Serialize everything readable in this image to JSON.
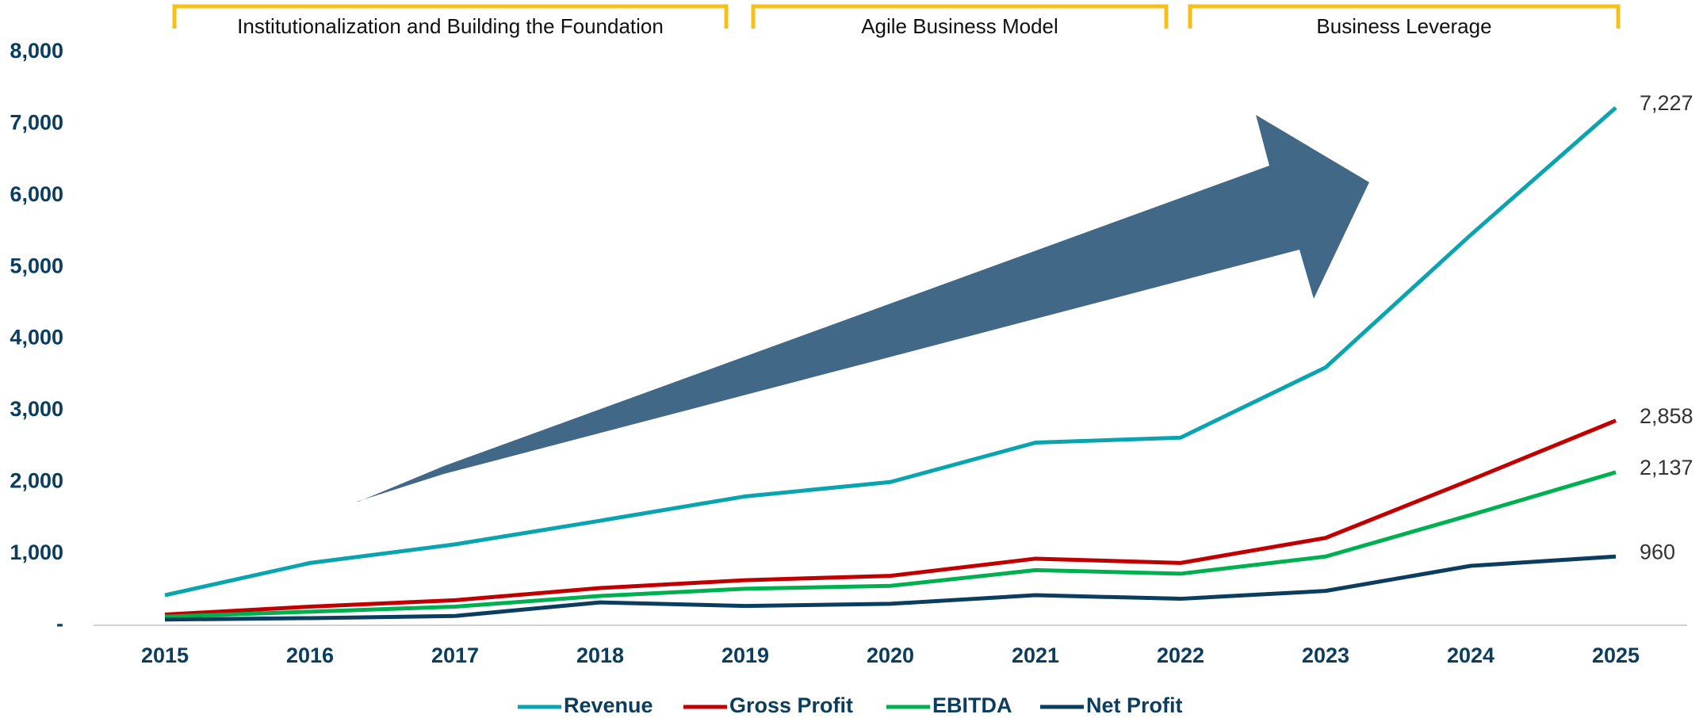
{
  "chart_data": {
    "type": "line",
    "categories": [
      "2015",
      "2016",
      "2017",
      "2018",
      "2019",
      "2020",
      "2021",
      "2022",
      "2023",
      "2024",
      "2025"
    ],
    "series": [
      {
        "name": "Revenue",
        "color": "#0aa3b0",
        "values": [
          420,
          870,
          1130,
          1460,
          1800,
          2000,
          2550,
          2620,
          3600,
          5450,
          7227
        ],
        "value_labels": [
          null,
          null,
          null,
          null,
          null,
          null,
          null,
          null,
          null,
          null,
          "7,227"
        ]
      },
      {
        "name": "Gross Profit",
        "color": "#c00000",
        "values": [
          150,
          260,
          350,
          520,
          630,
          690,
          930,
          870,
          1220,
          2030,
          2858
        ],
        "value_labels": [
          null,
          null,
          null,
          null,
          null,
          null,
          null,
          null,
          null,
          null,
          "2,858"
        ]
      },
      {
        "name": "EBITDA",
        "color": "#00b050",
        "values": [
          120,
          190,
          260,
          410,
          510,
          550,
          770,
          720,
          960,
          1540,
          2137
        ],
        "value_labels": [
          null,
          null,
          null,
          null,
          null,
          null,
          null,
          null,
          null,
          null,
          "2,137"
        ]
      },
      {
        "name": "Net Profit",
        "color": "#0b3d5e",
        "values": [
          80,
          100,
          130,
          320,
          270,
          300,
          420,
          370,
          480,
          830,
          960
        ],
        "value_labels": [
          null,
          null,
          null,
          null,
          null,
          null,
          null,
          null,
          null,
          null,
          "960"
        ]
      }
    ],
    "ylim": [
      0,
      8000
    ],
    "yticks": [
      {
        "value": 0,
        "label": "-"
      },
      {
        "value": 1000,
        "label": "1,000"
      },
      {
        "value": 2000,
        "label": "2,000"
      },
      {
        "value": 3000,
        "label": "3,000"
      },
      {
        "value": 4000,
        "label": "4,000"
      },
      {
        "value": 5000,
        "label": "5,000"
      },
      {
        "value": 6000,
        "label": "6,000"
      },
      {
        "value": 7000,
        "label": "7,000"
      },
      {
        "value": 8000,
        "label": "8,000"
      }
    ],
    "annotations": [
      {
        "label": "Institutionalization and Building the Foundation"
      },
      {
        "label": "Agile Business Model"
      },
      {
        "label": "Business Leverage"
      }
    ],
    "grid": false,
    "legend": "bottom"
  }
}
